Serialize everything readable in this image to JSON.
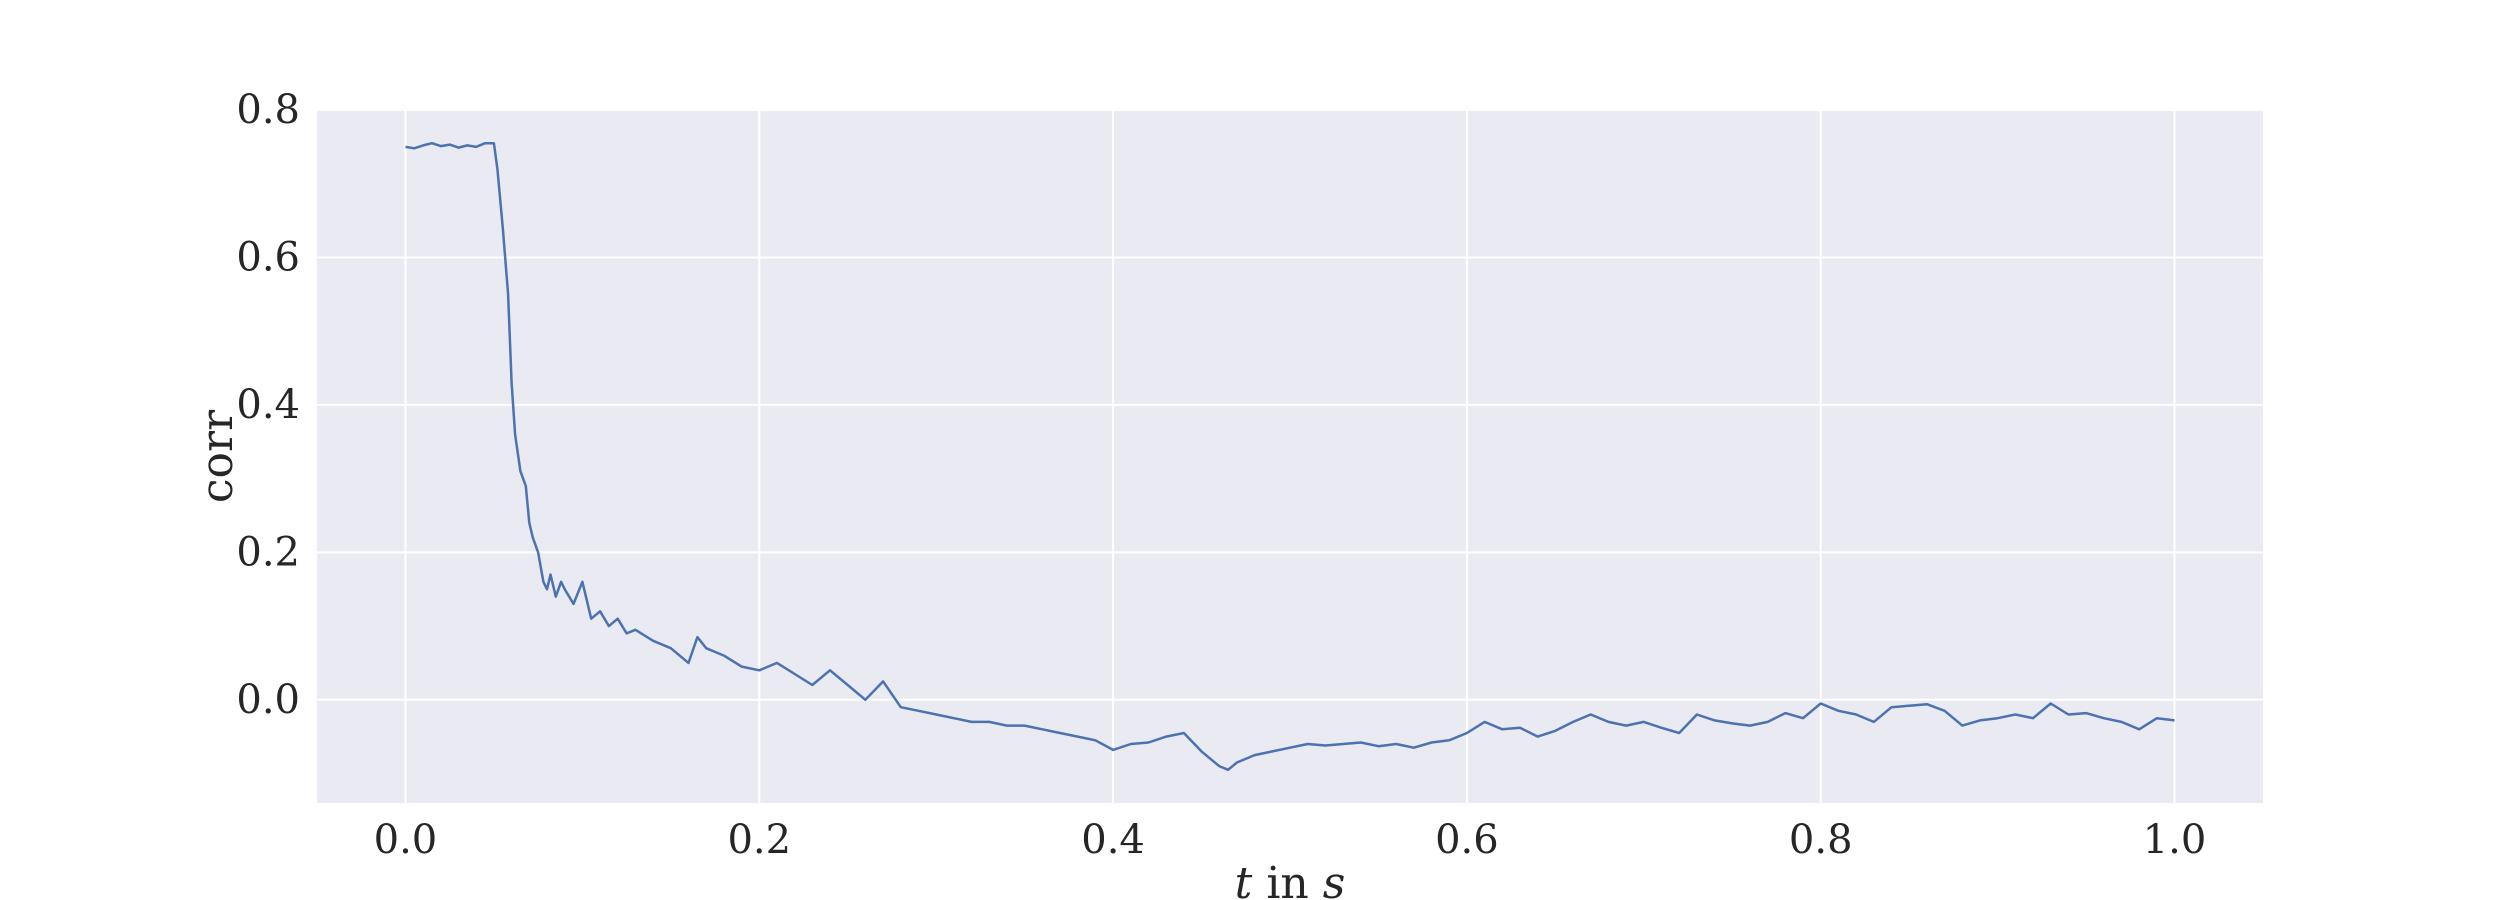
{
  "chart_data": {
    "type": "line",
    "title": "",
    "xlabel_italic": "t",
    "xlabel_mid": " in ",
    "xlabel_unit": "s",
    "ylabel": "corr",
    "xlim": [
      -0.05,
      1.05
    ],
    "ylim": [
      -0.14,
      0.8
    ],
    "xticks": [
      0.0,
      0.2,
      0.4,
      0.6,
      0.8,
      1.0
    ],
    "xtick_labels": [
      "0.0",
      "0.2",
      "0.4",
      "0.6",
      "0.8",
      "1.0"
    ],
    "yticks": [
      0.0,
      0.2,
      0.4,
      0.6,
      0.8
    ],
    "ytick_labels": [
      "0.0",
      "0.2",
      "0.4",
      "0.6",
      "0.8"
    ],
    "grid": true,
    "background_color": "#EAEAF2",
    "grid_color": "#FFFFFF",
    "series": [
      {
        "color": "#4C72B0",
        "x": [
          0.0,
          0.005,
          0.01,
          0.015,
          0.02,
          0.025,
          0.03,
          0.035,
          0.04,
          0.045,
          0.05,
          0.052,
          0.055,
          0.058,
          0.06,
          0.062,
          0.065,
          0.068,
          0.07,
          0.072,
          0.075,
          0.078,
          0.08,
          0.082,
          0.085,
          0.088,
          0.09,
          0.095,
          0.1,
          0.105,
          0.11,
          0.115,
          0.12,
          0.125,
          0.13,
          0.14,
          0.15,
          0.16,
          0.165,
          0.17,
          0.175,
          0.18,
          0.19,
          0.2,
          0.21,
          0.22,
          0.23,
          0.24,
          0.25,
          0.26,
          0.27,
          0.28,
          0.29,
          0.3,
          0.31,
          0.32,
          0.33,
          0.34,
          0.35,
          0.36,
          0.37,
          0.38,
          0.39,
          0.4,
          0.41,
          0.42,
          0.43,
          0.44,
          0.45,
          0.46,
          0.465,
          0.47,
          0.48,
          0.49,
          0.5,
          0.51,
          0.52,
          0.53,
          0.54,
          0.55,
          0.56,
          0.57,
          0.58,
          0.59,
          0.6,
          0.61,
          0.62,
          0.63,
          0.64,
          0.65,
          0.66,
          0.67,
          0.68,
          0.69,
          0.7,
          0.71,
          0.72,
          0.73,
          0.74,
          0.75,
          0.76,
          0.77,
          0.78,
          0.79,
          0.8,
          0.81,
          0.82,
          0.83,
          0.84,
          0.85,
          0.86,
          0.87,
          0.88,
          0.89,
          0.9,
          0.91,
          0.92,
          0.93,
          0.94,
          0.95,
          0.96,
          0.97,
          0.98,
          0.99,
          1.0
        ],
        "y": [
          0.75,
          0.748,
          0.752,
          0.755,
          0.751,
          0.753,
          0.749,
          0.752,
          0.75,
          0.755,
          0.755,
          0.72,
          0.64,
          0.55,
          0.43,
          0.36,
          0.31,
          0.29,
          0.24,
          0.22,
          0.2,
          0.16,
          0.15,
          0.17,
          0.14,
          0.16,
          0.15,
          0.13,
          0.16,
          0.11,
          0.12,
          0.1,
          0.11,
          0.09,
          0.095,
          0.08,
          0.07,
          0.05,
          0.085,
          0.07,
          0.065,
          0.06,
          0.045,
          0.04,
          0.05,
          0.035,
          0.02,
          0.04,
          0.02,
          0.0,
          0.025,
          -0.01,
          -0.015,
          -0.02,
          -0.025,
          -0.03,
          -0.03,
          -0.035,
          -0.035,
          -0.04,
          -0.045,
          -0.05,
          -0.055,
          -0.068,
          -0.06,
          -0.058,
          -0.05,
          -0.045,
          -0.07,
          -0.09,
          -0.095,
          -0.085,
          -0.075,
          -0.07,
          -0.065,
          -0.06,
          -0.062,
          -0.06,
          -0.058,
          -0.063,
          -0.06,
          -0.065,
          -0.058,
          -0.055,
          -0.045,
          -0.03,
          -0.04,
          -0.038,
          -0.05,
          -0.042,
          -0.03,
          -0.02,
          -0.03,
          -0.035,
          -0.03,
          -0.038,
          -0.045,
          -0.02,
          -0.028,
          -0.032,
          -0.035,
          -0.03,
          -0.018,
          -0.025,
          -0.005,
          -0.015,
          -0.02,
          -0.03,
          -0.01,
          -0.008,
          -0.006,
          -0.015,
          -0.035,
          -0.028,
          -0.025,
          -0.02,
          -0.025,
          -0.005,
          -0.02,
          -0.018,
          -0.025,
          -0.03,
          -0.04,
          -0.025,
          -0.028
        ]
      }
    ]
  }
}
